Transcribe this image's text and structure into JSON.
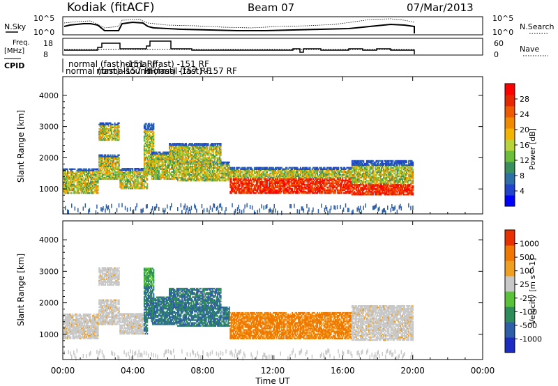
{
  "header": {
    "station": "Kodiak (fitACF)",
    "beam": "Beam 07",
    "date": "07/Mar/2013"
  },
  "panels": {
    "nsky_label": "N.Sky",
    "nsky_ticks": [
      "10^5",
      "10^0"
    ],
    "nsearch_label": "N.Search",
    "nsearch_ticks": [
      "10^5",
      "10^0"
    ],
    "freq_label": [
      "Freq.",
      "[MHz]"
    ],
    "freq_ticks": [
      "18",
      "8"
    ],
    "nave_label": "Nave",
    "nave_ticks": [
      "60",
      "0"
    ],
    "cpid_label": "CPID",
    "cpid_entries": [
      "normal (fast) -151 RF",
      "normal (fast) -157 RF",
      "normalsound (fast) -157 RF",
      "normal (fast) -151 RF",
      "normal (fast) -157 RF"
    ]
  },
  "chart_data": [
    {
      "type": "heatmap",
      "name": "power",
      "ylabel": "Slant Range [km]",
      "xlabel": "Time UT",
      "ylim": [
        200,
        4600
      ],
      "xlim": [
        0,
        24
      ],
      "xticks": [
        "00:00",
        "04:00",
        "08:00",
        "12:00",
        "16:00",
        "20:00",
        "00:00"
      ],
      "yticks": [
        "1000",
        "2000",
        "3000",
        "4000"
      ],
      "colorbar": {
        "label": "Power [dB]",
        "ticks": [
          "28",
          "24",
          "20",
          "16",
          "12",
          "8",
          "4"
        ],
        "colors": [
          "#0000ff",
          "#2244cc",
          "#2e6fa8",
          "#3b8e5e",
          "#6abe3a",
          "#b9d43a",
          "#f2b400",
          "#f08a00",
          "#ee5a00",
          "#e62800",
          "#ff0000"
        ]
      }
    },
    {
      "type": "heatmap",
      "name": "velocity",
      "ylabel": "Slant Range [km]",
      "xlabel": "Time UT",
      "ylim": [
        200,
        4600
      ],
      "xlim": [
        0,
        24
      ],
      "yticks": [
        "1000",
        "2000",
        "3000",
        "4000"
      ],
      "colorbar": {
        "label": "Velocity [m s^-1]",
        "ticks": [
          "1000",
          "500",
          "100",
          "25",
          "-25",
          "-100",
          "-500",
          "-1000"
        ],
        "colors": [
          "#1c2bc2",
          "#2f5ea8",
          "#2e8c5a",
          "#59c13a",
          "#c8c8c8",
          "#f0a020",
          "#f07800",
          "#e83000"
        ]
      }
    }
  ]
}
